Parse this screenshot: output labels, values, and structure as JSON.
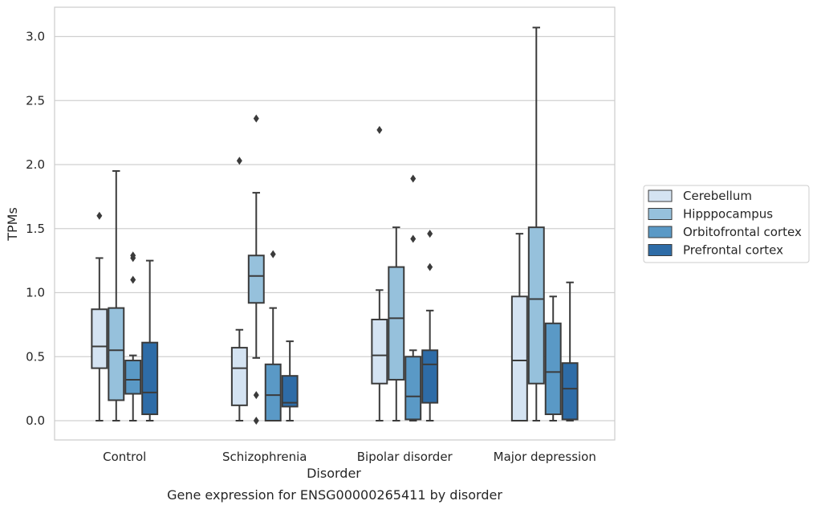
{
  "chart_data": {
    "type": "box",
    "title": "",
    "caption": "Gene expression for ENSG00000265411 by disorder",
    "xlabel": "Disorder",
    "ylabel": "TPMs",
    "ylim": [
      -0.15,
      3.23
    ],
    "yticks": [
      0.0,
      0.5,
      1.0,
      1.5,
      2.0,
      2.5,
      3.0
    ],
    "ytick_labels": [
      "0.0",
      "0.5",
      "1.0",
      "1.5",
      "2.0",
      "2.5",
      "3.0"
    ],
    "grid": "horizontal",
    "legend_placement": "outside-right",
    "categories": [
      "Control",
      "Schizophrenia",
      "Bipolar disorder",
      "Major depression"
    ],
    "series": [
      {
        "name": "Cerebellum",
        "color": "#d4e3f2",
        "boxes": [
          {
            "q1": 0.41,
            "median": 0.58,
            "q3": 0.87,
            "whisker_low": 0.0,
            "whisker_high": 1.27,
            "outliers": [
              1.6
            ]
          },
          {
            "q1": 0.12,
            "median": 0.41,
            "q3": 0.57,
            "whisker_low": 0.0,
            "whisker_high": 0.71,
            "outliers": [
              2.03
            ]
          },
          {
            "q1": 0.29,
            "median": 0.51,
            "q3": 0.79,
            "whisker_low": 0.0,
            "whisker_high": 1.02,
            "outliers": [
              2.27
            ]
          },
          {
            "q1": 0.0,
            "median": 0.47,
            "q3": 0.97,
            "whisker_low": 0.0,
            "whisker_high": 1.46,
            "outliers": []
          }
        ]
      },
      {
        "name": "Hipppocampus",
        "color": "#96c1dc",
        "boxes": [
          {
            "q1": 0.16,
            "median": 0.55,
            "q3": 0.88,
            "whisker_low": 0.0,
            "whisker_high": 1.95,
            "outliers": []
          },
          {
            "q1": 0.92,
            "median": 1.13,
            "q3": 1.29,
            "whisker_low": 0.49,
            "whisker_high": 1.78,
            "outliers": [
              0.2,
              0.0,
              2.36
            ]
          },
          {
            "q1": 0.32,
            "median": 0.8,
            "q3": 1.2,
            "whisker_low": 0.0,
            "whisker_high": 1.51,
            "outliers": []
          },
          {
            "q1": 0.29,
            "median": 0.95,
            "q3": 1.51,
            "whisker_low": 0.0,
            "whisker_high": 3.07,
            "outliers": []
          }
        ]
      },
      {
        "name": "Orbitofrontal cortex",
        "color": "#5a99c6",
        "boxes": [
          {
            "q1": 0.21,
            "median": 0.32,
            "q3": 0.47,
            "whisker_low": 0.0,
            "whisker_high": 0.51,
            "outliers": [
              1.1,
              1.27,
              1.29
            ]
          },
          {
            "q1": 0.0,
            "median": 0.2,
            "q3": 0.44,
            "whisker_low": 0.0,
            "whisker_high": 0.88,
            "outliers": [
              1.3
            ]
          },
          {
            "q1": 0.01,
            "median": 0.19,
            "q3": 0.5,
            "whisker_low": 0.0,
            "whisker_high": 0.55,
            "outliers": [
              1.42,
              1.89
            ]
          },
          {
            "q1": 0.05,
            "median": 0.38,
            "q3": 0.76,
            "whisker_low": 0.0,
            "whisker_high": 0.97,
            "outliers": []
          }
        ]
      },
      {
        "name": "Prefrontal cortex",
        "color": "#2e6ca7",
        "boxes": [
          {
            "q1": 0.05,
            "median": 0.22,
            "q3": 0.61,
            "whisker_low": 0.0,
            "whisker_high": 1.25,
            "outliers": []
          },
          {
            "q1": 0.11,
            "median": 0.14,
            "q3": 0.35,
            "whisker_low": 0.0,
            "whisker_high": 0.62,
            "outliers": []
          },
          {
            "q1": 0.14,
            "median": 0.44,
            "q3": 0.55,
            "whisker_low": 0.0,
            "whisker_high": 0.86,
            "outliers": [
              1.2,
              1.46
            ]
          },
          {
            "q1": 0.01,
            "median": 0.25,
            "q3": 0.45,
            "whisker_low": 0.0,
            "whisker_high": 1.08,
            "outliers": []
          }
        ]
      }
    ]
  }
}
